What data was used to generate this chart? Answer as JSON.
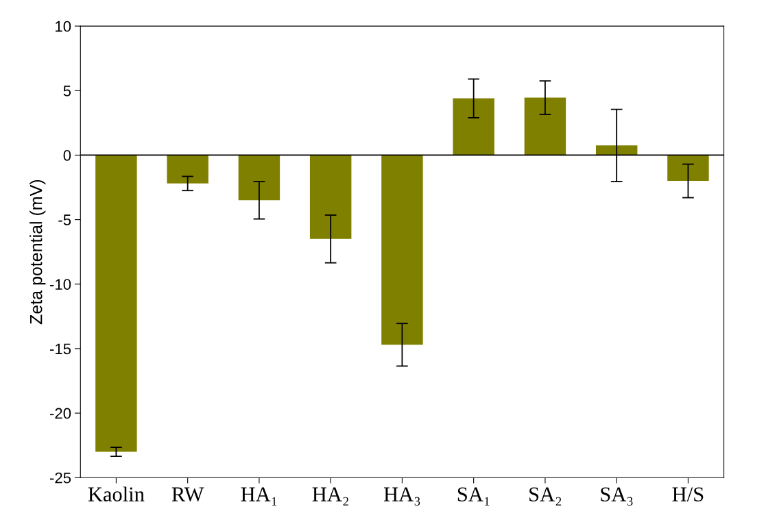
{
  "chart_data": {
    "type": "bar",
    "ylabel": "Zeta potential (mV)",
    "categories": [
      "Kaolin",
      "RW",
      "HA₁",
      "HA₂",
      "HA₃",
      "SA₁",
      "SA₂",
      "SA₃",
      "H/S"
    ],
    "values": [
      -23.0,
      -2.2,
      -3.5,
      -6.5,
      -14.7,
      4.4,
      4.45,
      0.75,
      -2.0
    ],
    "errors": [
      0.35,
      0.55,
      1.45,
      1.85,
      1.65,
      1.5,
      1.3,
      2.8,
      1.3
    ],
    "color": "#808000",
    "ylim": [
      -25,
      10
    ],
    "yticks": [
      -25,
      -20,
      -15,
      -10,
      -5,
      0,
      5,
      10
    ],
    "ref_lines": [
      {
        "axis": "y",
        "value": 0,
        "color": "#000000"
      }
    ],
    "grid": false
  }
}
